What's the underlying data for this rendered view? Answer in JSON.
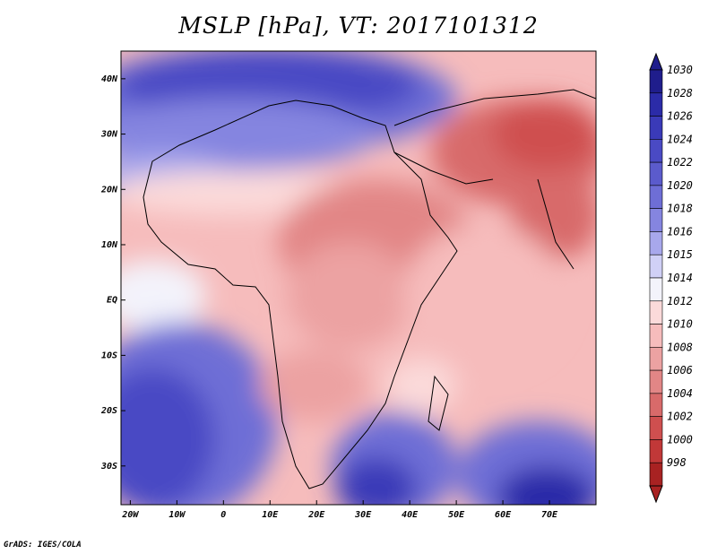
{
  "title": "MSLP [hPa], VT: 2017101312",
  "credit": "GrADS: IGES/COLA",
  "map": {
    "lon_range": [
      -22,
      80
    ],
    "lat_range": [
      -37,
      45
    ],
    "lon_ticks": [
      {
        "value": -20,
        "label": "20W"
      },
      {
        "value": -10,
        "label": "10W"
      },
      {
        "value": 0,
        "label": "0"
      },
      {
        "value": 10,
        "label": "10E"
      },
      {
        "value": 20,
        "label": "20E"
      },
      {
        "value": 30,
        "label": "30E"
      },
      {
        "value": 40,
        "label": "40E"
      },
      {
        "value": 50,
        "label": "50E"
      },
      {
        "value": 60,
        "label": "60E"
      },
      {
        "value": 70,
        "label": "70E"
      }
    ],
    "lat_ticks": [
      {
        "value": 40,
        "label": "40N"
      },
      {
        "value": 30,
        "label": "30N"
      },
      {
        "value": 20,
        "label": "20N"
      },
      {
        "value": 10,
        "label": "10N"
      },
      {
        "value": 0,
        "label": "EQ"
      },
      {
        "value": -10,
        "label": "10S"
      },
      {
        "value": -20,
        "label": "20S"
      },
      {
        "value": -30,
        "label": "30S"
      }
    ]
  },
  "colorbar": {
    "levels": [
      "1030",
      "1028",
      "1026",
      "1024",
      "1022",
      "1020",
      "1018",
      "1016",
      "1015",
      "1014",
      "1012",
      "1010",
      "1008",
      "1006",
      "1004",
      "1002",
      "1000",
      "998"
    ],
    "colors": [
      "#1f1d8c",
      "#2b2ba8",
      "#3a3ab8",
      "#4a4ac4",
      "#5b5bcc",
      "#6e6ed6",
      "#8585e0",
      "#a8a8ec",
      "#d0d0f6",
      "#f3f3fb",
      "#fbdada",
      "#f6bcbc",
      "#eca2a2",
      "#e28686",
      "#d86a6a",
      "#cf4f4f",
      "#c13838",
      "#a82222"
    ]
  }
}
